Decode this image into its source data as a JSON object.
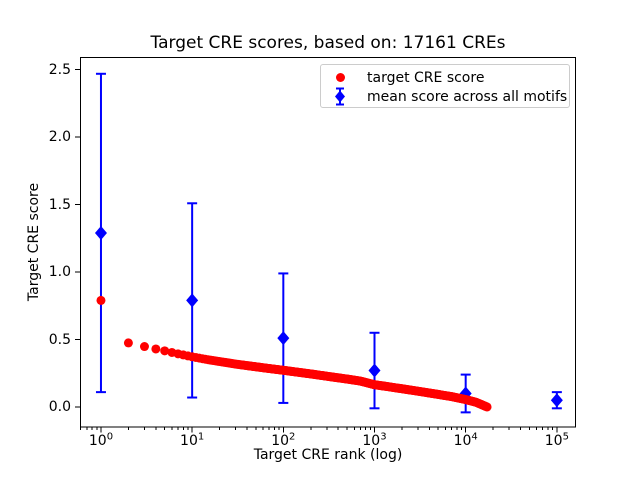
{
  "chart_data": {
    "type": "scatter",
    "title": "Target CRE scores, based on: 17161 CREs",
    "xlabel": "Target CRE rank (log)",
    "ylabel": "Target CRE score",
    "x_scale": "log",
    "grid": false,
    "xlim_log10": [
      -0.23,
      5.21
    ],
    "ylim": [
      -0.15,
      2.59
    ],
    "yticks": [
      {
        "value": 0.0,
        "label": "0.0"
      },
      {
        "value": 0.5,
        "label": "0.5"
      },
      {
        "value": 1.0,
        "label": "1.0"
      },
      {
        "value": 1.5,
        "label": "1.5"
      },
      {
        "value": 2.0,
        "label": "2.0"
      },
      {
        "value": 2.5,
        "label": "2.5"
      }
    ],
    "xticks": [
      {
        "value": 1,
        "base": "10",
        "exp": "0"
      },
      {
        "value": 10,
        "base": "10",
        "exp": "1"
      },
      {
        "value": 100,
        "base": "10",
        "exp": "2"
      },
      {
        "value": 1000,
        "base": "10",
        "exp": "3"
      },
      {
        "value": 10000,
        "base": "10",
        "exp": "4"
      },
      {
        "value": 100000,
        "base": "10",
        "exp": "5"
      }
    ],
    "legend": {
      "position": "upper center-right",
      "items": [
        {
          "label": "target CRE score",
          "marker": "circle",
          "color": "#ff0000"
        },
        {
          "label": "mean score across all motifs",
          "marker": "diamond-errorbar",
          "color": "#0000ff"
        }
      ]
    },
    "series": [
      {
        "name": "target CRE score",
        "type": "scatter",
        "marker": "circle",
        "color": "#ff0000",
        "marker_radius_px": 4.5,
        "n_points": 17161,
        "control_points": [
          [
            1,
            0.79
          ],
          [
            2,
            0.475
          ],
          [
            3,
            0.448
          ],
          [
            4,
            0.43
          ],
          [
            5,
            0.416
          ],
          [
            7,
            0.394
          ],
          [
            10,
            0.372
          ],
          [
            15,
            0.35
          ],
          [
            20,
            0.337
          ],
          [
            30,
            0.318
          ],
          [
            50,
            0.298
          ],
          [
            70,
            0.285
          ],
          [
            100,
            0.272
          ],
          [
            200,
            0.245
          ],
          [
            300,
            0.228
          ],
          [
            500,
            0.207
          ],
          [
            700,
            0.192
          ],
          [
            1000,
            0.165
          ],
          [
            1500,
            0.148
          ],
          [
            2000,
            0.135
          ],
          [
            3000,
            0.117
          ],
          [
            5000,
            0.093
          ],
          [
            7000,
            0.077
          ],
          [
            10000,
            0.055
          ],
          [
            13000,
            0.035
          ],
          [
            17161,
            0.0
          ]
        ]
      },
      {
        "name": "mean score across all motifs",
        "type": "errorbar",
        "marker": "diamond",
        "color": "#0000ff",
        "points": [
          {
            "x": 1,
            "mean": 1.29,
            "err": 1.18
          },
          {
            "x": 10,
            "mean": 0.79,
            "err": 0.72
          },
          {
            "x": 100,
            "mean": 0.51,
            "err": 0.48
          },
          {
            "x": 1000,
            "mean": 0.27,
            "err": 0.28
          },
          {
            "x": 10000,
            "mean": 0.1,
            "err": 0.14
          },
          {
            "x": 100000,
            "mean": 0.05,
            "err": 0.06
          }
        ]
      }
    ]
  }
}
